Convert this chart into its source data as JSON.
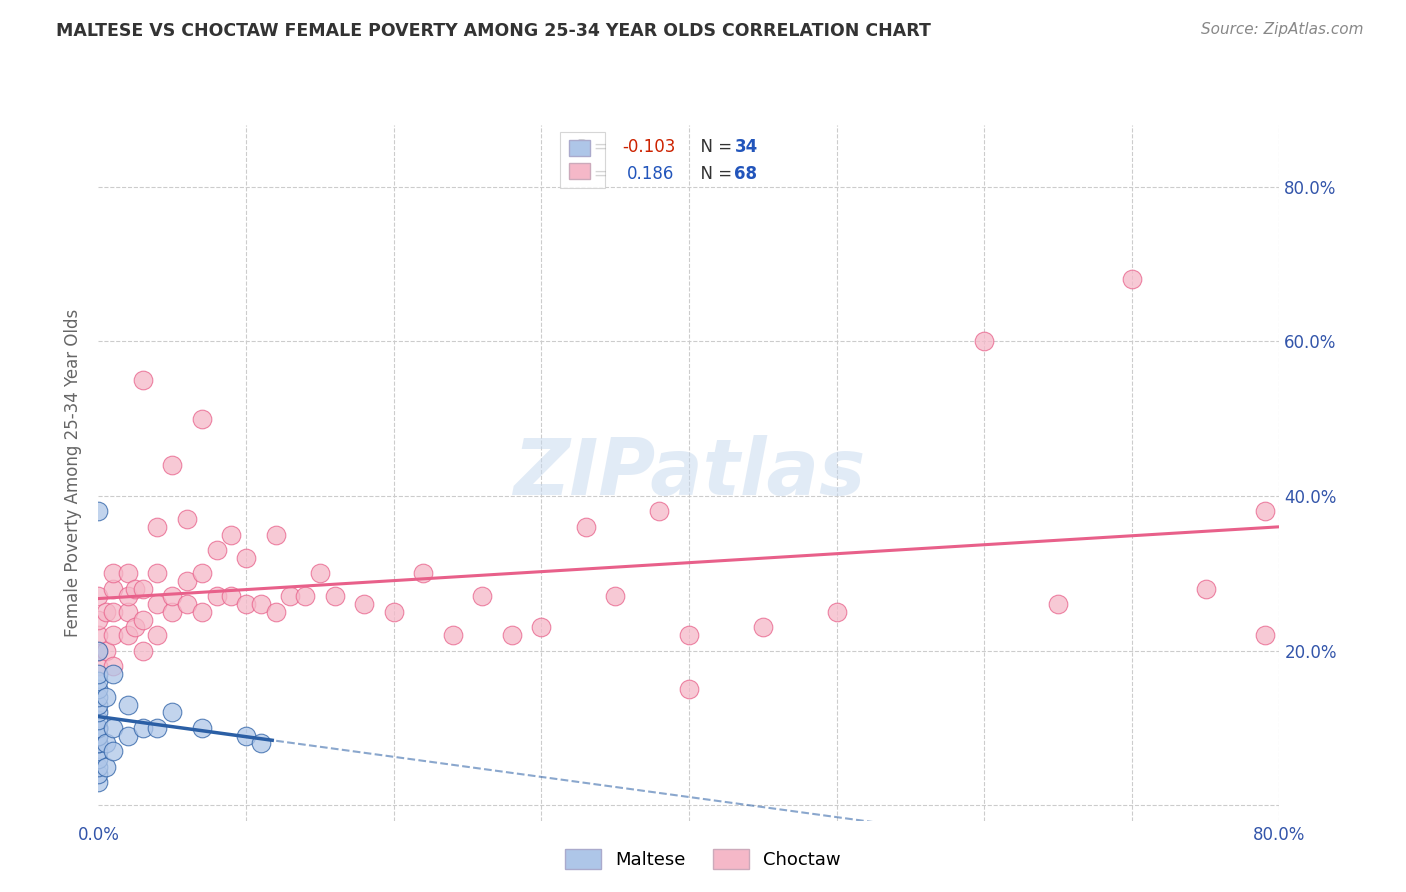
{
  "title": "MALTESE VS CHOCTAW FEMALE POVERTY AMONG 25-34 YEAR OLDS CORRELATION CHART",
  "source": "Source: ZipAtlas.com",
  "ylabel": "Female Poverty Among 25-34 Year Olds",
  "xlim": [
    0.0,
    0.8
  ],
  "ylim": [
    -0.02,
    0.88
  ],
  "xticks": [
    0.0,
    0.1,
    0.2,
    0.3,
    0.4,
    0.5,
    0.6,
    0.7,
    0.8
  ],
  "xticklabels": [
    "0.0%",
    "",
    "",
    "",
    "",
    "",
    "",
    "",
    "80.0%"
  ],
  "ytick_positions": [
    0.0,
    0.2,
    0.4,
    0.6,
    0.8
  ],
  "ytick_labels": [
    "",
    "20.0%",
    "40.0%",
    "60.0%",
    "80.0%"
  ],
  "legend_r_maltese": "-0.103",
  "legend_n_maltese": "34",
  "legend_r_choctaw": "0.186",
  "legend_n_choctaw": "68",
  "maltese_color": "#aec6e8",
  "choctaw_color": "#f5b8c8",
  "maltese_line_color": "#2b5fa5",
  "choctaw_line_color": "#e8608a",
  "watermark": "ZIPatlas",
  "maltese_x": [
    0.0,
    0.0,
    0.0,
    0.0,
    0.0,
    0.0,
    0.0,
    0.0,
    0.0,
    0.0,
    0.0,
    0.0,
    0.0,
    0.0,
    0.0,
    0.0,
    0.0,
    0.0,
    0.0,
    0.0,
    0.005,
    0.005,
    0.005,
    0.01,
    0.01,
    0.01,
    0.02,
    0.02,
    0.03,
    0.04,
    0.05,
    0.07,
    0.1,
    0.11
  ],
  "maltese_y": [
    0.03,
    0.04,
    0.05,
    0.06,
    0.07,
    0.08,
    0.08,
    0.09,
    0.09,
    0.1,
    0.1,
    0.11,
    0.12,
    0.13,
    0.14,
    0.15,
    0.16,
    0.17,
    0.2,
    0.38,
    0.05,
    0.08,
    0.14,
    0.07,
    0.1,
    0.17,
    0.09,
    0.13,
    0.1,
    0.1,
    0.12,
    0.1,
    0.09,
    0.08
  ],
  "choctaw_x": [
    0.0,
    0.0,
    0.0,
    0.0,
    0.0,
    0.005,
    0.005,
    0.01,
    0.01,
    0.01,
    0.01,
    0.01,
    0.02,
    0.02,
    0.02,
    0.02,
    0.025,
    0.025,
    0.03,
    0.03,
    0.03,
    0.03,
    0.04,
    0.04,
    0.04,
    0.04,
    0.05,
    0.05,
    0.05,
    0.06,
    0.06,
    0.06,
    0.07,
    0.07,
    0.07,
    0.08,
    0.08,
    0.09,
    0.09,
    0.1,
    0.1,
    0.11,
    0.12,
    0.12,
    0.13,
    0.14,
    0.15,
    0.16,
    0.18,
    0.2,
    0.22,
    0.24,
    0.26,
    0.28,
    0.3,
    0.33,
    0.35,
    0.38,
    0.4,
    0.45,
    0.5,
    0.6,
    0.65,
    0.7,
    0.75,
    0.79,
    0.79,
    0.4
  ],
  "choctaw_y": [
    0.18,
    0.2,
    0.22,
    0.24,
    0.27,
    0.2,
    0.25,
    0.18,
    0.22,
    0.25,
    0.28,
    0.3,
    0.22,
    0.25,
    0.27,
    0.3,
    0.23,
    0.28,
    0.2,
    0.24,
    0.28,
    0.55,
    0.22,
    0.26,
    0.3,
    0.36,
    0.25,
    0.27,
    0.44,
    0.26,
    0.29,
    0.37,
    0.25,
    0.3,
    0.5,
    0.27,
    0.33,
    0.27,
    0.35,
    0.26,
    0.32,
    0.26,
    0.25,
    0.35,
    0.27,
    0.27,
    0.3,
    0.27,
    0.26,
    0.25,
    0.3,
    0.22,
    0.27,
    0.22,
    0.23,
    0.36,
    0.27,
    0.38,
    0.22,
    0.23,
    0.25,
    0.6,
    0.26,
    0.68,
    0.28,
    0.38,
    0.22,
    0.15
  ],
  "grid_color": "#cccccc",
  "background_color": "#ffffff",
  "title_color": "#333333",
  "axis_label_color": "#666666",
  "tick_color": "#3355aa",
  "source_color": "#888888"
}
